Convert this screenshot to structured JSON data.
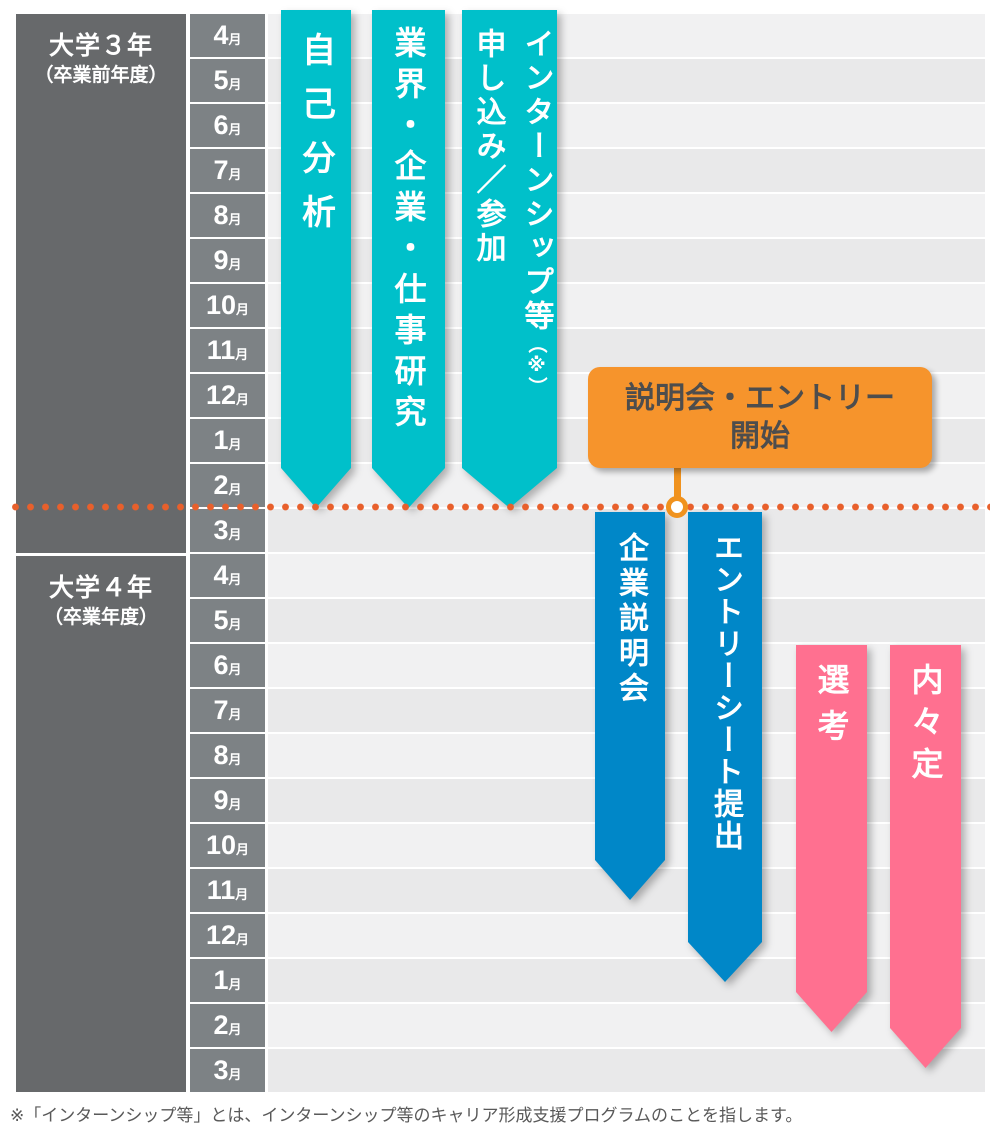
{
  "years": [
    {
      "label": "大学３年",
      "sublabel": "（卒業前年度）"
    },
    {
      "label": "大学４年",
      "sublabel": "（卒業年度）"
    }
  ],
  "months": [
    "4",
    "5",
    "6",
    "7",
    "8",
    "9",
    "10",
    "11",
    "12",
    "1",
    "2",
    "3",
    "4",
    "5",
    "6",
    "7",
    "8",
    "9",
    "10",
    "11",
    "12",
    "1",
    "2",
    "3"
  ],
  "month_suffix": "月",
  "bars": {
    "self_analysis": {
      "label": "自己分析",
      "color": "#00c0ca"
    },
    "industry_research": {
      "label": "業界・企業・仕事研究",
      "color": "#00c0ca"
    },
    "internship": {
      "label_col1": "インターンシップ等",
      "label_note": "（※）",
      "label_col2": "申し込み／参加",
      "color": "#00c0ca"
    },
    "company_seminar": {
      "label": "企業説明会",
      "color": "#0087c8"
    },
    "entry_sheet": {
      "label": "エントリーシート提出",
      "color": "#0087c8"
    },
    "selection": {
      "label": "選考",
      "color": "#ff7090"
    },
    "informal_offer": {
      "label": "内々定",
      "color": "#ff7090"
    }
  },
  "callout": {
    "line1": "説明会・エントリー",
    "line2": "開始",
    "color": "#f6942c"
  },
  "divider": {
    "color": "#e8602c"
  },
  "colors": {
    "sidebar": "#67696b",
    "month_cell": "#7d8285",
    "stripe_light": "#f1f1f2",
    "stripe_dark": "#e9e9ea"
  },
  "footnote": "※「インターンシップ等」とは、インターンシップ等のキャリア形成支援プログラムのことを指します。"
}
